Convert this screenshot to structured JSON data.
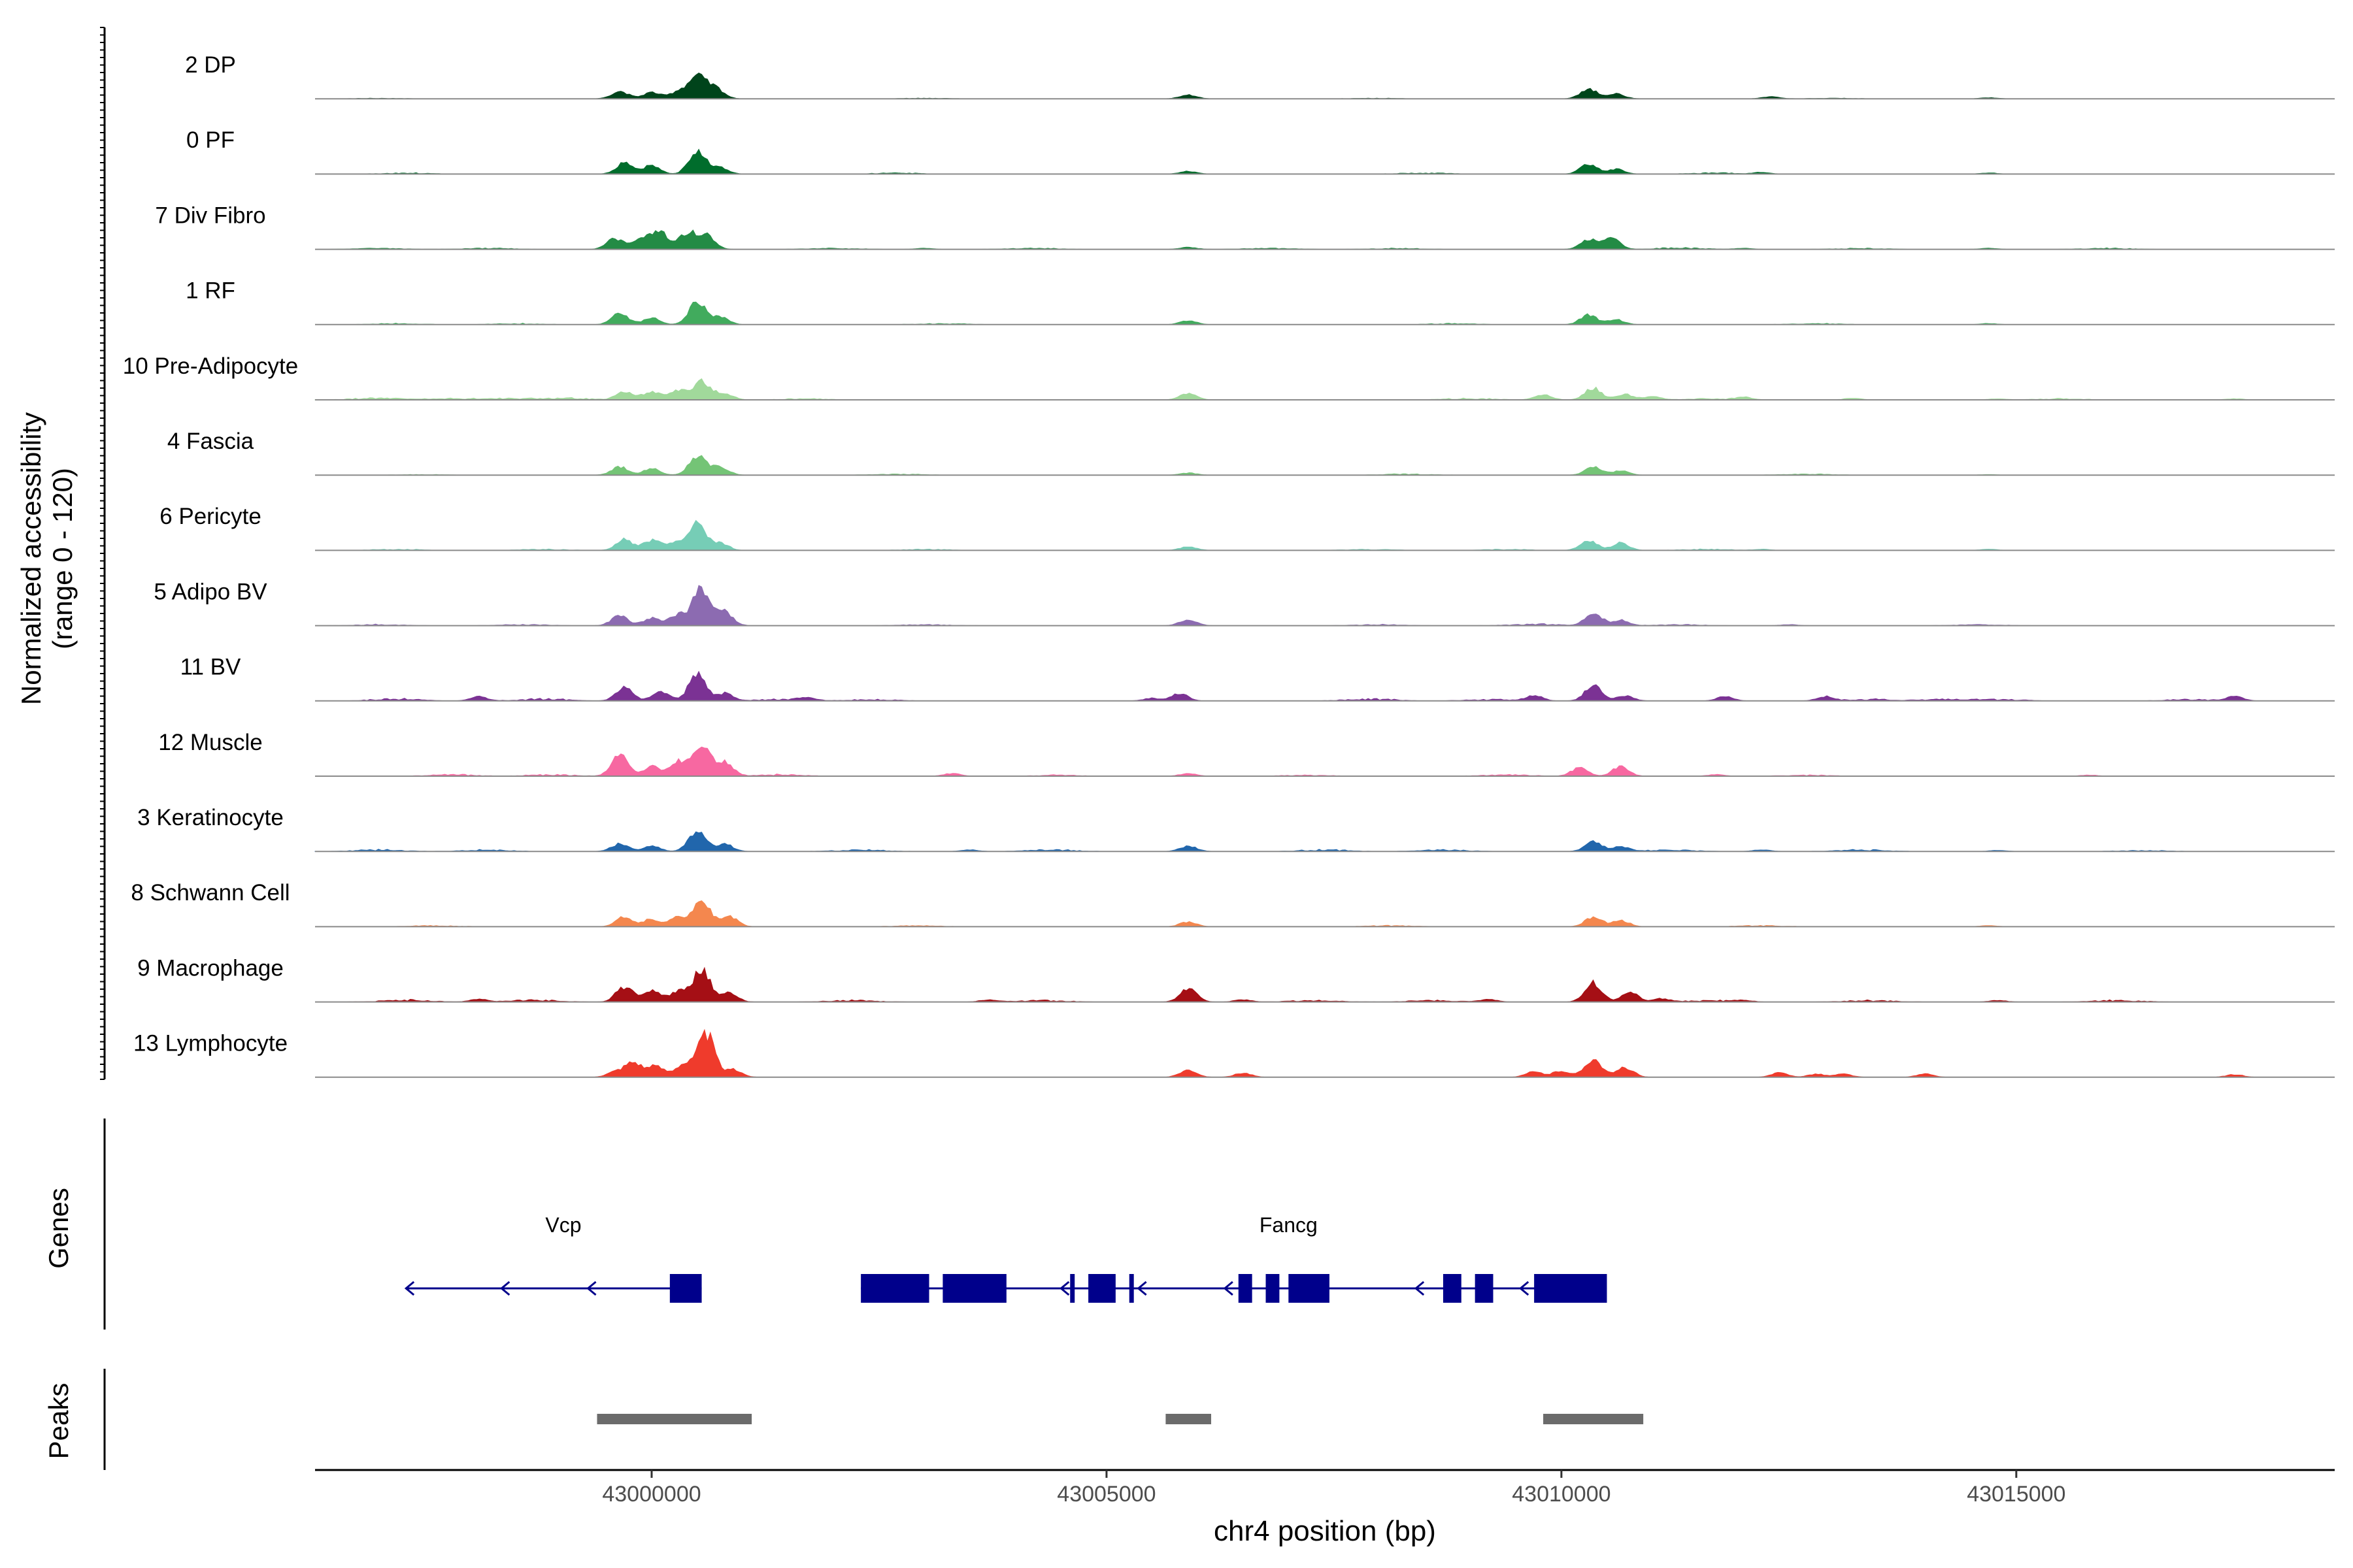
{
  "chart_data": {
    "type": "area",
    "chromosome": "chr4",
    "xlabel": "chr4 position (bp)",
    "xlim": [
      42996300,
      43018500
    ],
    "x_ticks": [
      43000000,
      43005000,
      43010000,
      43015000
    ],
    "x_tick_labels": [
      "43000000",
      "43005000",
      "43010000",
      "43015000"
    ],
    "ylabel_line1": "Normalized accessibility",
    "ylabel_line2": "(range 0 - 120)",
    "ylim": [
      0,
      120
    ],
    "tracks": [
      {
        "name": "2 DP",
        "color": "#00441B",
        "peaks": [
          [
            42999650,
            14
          ],
          [
            43000000,
            12
          ],
          [
            43000300,
            14
          ],
          [
            43000500,
            40
          ],
          [
            43000700,
            20
          ],
          [
            43005900,
            7
          ],
          [
            43010300,
            18
          ],
          [
            43010600,
            9
          ],
          [
            43012300,
            4
          ],
          [
            43014700,
            2
          ]
        ],
        "noise": [
          [
            42997000,
            1
          ],
          [
            43003000,
            1
          ],
          [
            43008000,
            1
          ],
          [
            43013000,
            1
          ]
        ]
      },
      {
        "name": "0 PF",
        "color": "#006D2C",
        "peaks": [
          [
            42999700,
            20
          ],
          [
            43000000,
            16
          ],
          [
            43000500,
            42
          ],
          [
            43000750,
            12
          ],
          [
            43005900,
            5
          ],
          [
            43010300,
            18
          ],
          [
            43010600,
            9
          ],
          [
            43012200,
            3
          ],
          [
            43014700,
            2
          ]
        ],
        "noise": [
          [
            42997300,
            2
          ],
          [
            43002700,
            2
          ],
          [
            43008500,
            2
          ],
          [
            43011700,
            2
          ]
        ]
      },
      {
        "name": "7 Div Fibro",
        "color": "#238B45",
        "peaks": [
          [
            42999600,
            20
          ],
          [
            42999900,
            22
          ],
          [
            43000100,
            30
          ],
          [
            43000400,
            30
          ],
          [
            43000600,
            25
          ],
          [
            43003000,
            2
          ],
          [
            43005900,
            4
          ],
          [
            43010300,
            18
          ],
          [
            43010550,
            20
          ],
          [
            43012000,
            2
          ],
          [
            43014700,
            2
          ]
        ],
        "noise": [
          [
            42997000,
            2
          ],
          [
            42998200,
            2
          ],
          [
            43002000,
            2
          ],
          [
            43004200,
            2
          ],
          [
            43006800,
            2
          ],
          [
            43008200,
            2
          ],
          [
            43011300,
            3
          ],
          [
            43013300,
            2
          ],
          [
            43016000,
            2
          ]
        ]
      },
      {
        "name": "1 RF",
        "color": "#41AB5D",
        "peaks": [
          [
            42999650,
            20
          ],
          [
            43000000,
            12
          ],
          [
            43000500,
            42
          ],
          [
            43000750,
            14
          ],
          [
            43005900,
            7
          ],
          [
            43010300,
            18
          ],
          [
            43010600,
            9
          ],
          [
            43014700,
            2
          ]
        ],
        "noise": [
          [
            42997200,
            2
          ],
          [
            42998500,
            2
          ],
          [
            43003200,
            2
          ],
          [
            43008800,
            2
          ],
          [
            43012800,
            2
          ]
        ]
      },
      {
        "name": "10 Pre-Adipocyte",
        "color": "#A1D99B",
        "peaks": [
          [
            42999700,
            14
          ],
          [
            43000000,
            16
          ],
          [
            43000300,
            18
          ],
          [
            43000550,
            35
          ],
          [
            43000800,
            12
          ],
          [
            43005900,
            12
          ],
          [
            43009800,
            9
          ],
          [
            43010350,
            22
          ],
          [
            43010700,
            10
          ],
          [
            43011000,
            6
          ],
          [
            43012000,
            5
          ],
          [
            43013200,
            3
          ],
          [
            43014800,
            2
          ],
          [
            43017400,
            2
          ]
        ],
        "noise": [
          [
            42997000,
            4
          ],
          [
            42997800,
            3
          ],
          [
            42998500,
            3
          ],
          [
            42999100,
            3
          ],
          [
            43001700,
            2
          ],
          [
            43009000,
            3
          ],
          [
            43011600,
            2
          ],
          [
            43015500,
            2
          ]
        ]
      },
      {
        "name": "4 Fascia",
        "color": "#74C476",
        "peaks": [
          [
            42999650,
            15
          ],
          [
            43000000,
            12
          ],
          [
            43000500,
            36
          ],
          [
            43000750,
            16
          ],
          [
            43005900,
            4
          ],
          [
            43010350,
            16
          ],
          [
            43010650,
            8
          ],
          [
            43014700,
            1
          ]
        ],
        "noise": [
          [
            42997500,
            1
          ],
          [
            43002700,
            2
          ],
          [
            43008300,
            2
          ],
          [
            43012700,
            2
          ]
        ]
      },
      {
        "name": "6 Pericyte",
        "color": "#76CDB6",
        "peaks": [
          [
            42999700,
            20
          ],
          [
            43000000,
            18
          ],
          [
            43000250,
            14
          ],
          [
            43000500,
            50
          ],
          [
            43000750,
            14
          ],
          [
            43005900,
            7
          ],
          [
            43010300,
            18
          ],
          [
            43010650,
            14
          ],
          [
            43012200,
            2
          ],
          [
            43014700,
            2
          ]
        ],
        "noise": [
          [
            42997200,
            2
          ],
          [
            42998800,
            2
          ],
          [
            43003000,
            2
          ],
          [
            43007900,
            2
          ],
          [
            43009400,
            2
          ],
          [
            43011600,
            2
          ]
        ]
      },
      {
        "name": "5 Adipo BV",
        "color": "#8C6BB1",
        "peaks": [
          [
            42999650,
            18
          ],
          [
            43000000,
            14
          ],
          [
            43000300,
            22
          ],
          [
            43000550,
            70
          ],
          [
            43000800,
            25
          ],
          [
            43005900,
            12
          ],
          [
            43010350,
            24
          ],
          [
            43010650,
            10
          ],
          [
            43012500,
            2
          ]
        ],
        "noise": [
          [
            42997000,
            2
          ],
          [
            42998600,
            2
          ],
          [
            43003000,
            2
          ],
          [
            43008000,
            2
          ],
          [
            43009700,
            3
          ],
          [
            43011300,
            2
          ],
          [
            43014600,
            2
          ]
        ]
      },
      {
        "name": "11 BV",
        "color": "#7B3294",
        "peaks": [
          [
            42998100,
            8
          ],
          [
            42999700,
            25
          ],
          [
            43000100,
            18
          ],
          [
            43000500,
            50
          ],
          [
            43000800,
            14
          ],
          [
            43001700,
            6
          ],
          [
            43005800,
            14
          ],
          [
            43005500,
            5
          ],
          [
            43009700,
            10
          ],
          [
            43010350,
            28
          ],
          [
            43010700,
            10
          ],
          [
            43011800,
            8
          ],
          [
            43012900,
            8
          ],
          [
            43017400,
            8
          ]
        ],
        "noise": [
          [
            42997200,
            4
          ],
          [
            42998800,
            4
          ],
          [
            43001400,
            3
          ],
          [
            43002400,
            3
          ],
          [
            43007900,
            4
          ],
          [
            43009200,
            3
          ],
          [
            43013400,
            3
          ],
          [
            43014200,
            3
          ],
          [
            43014800,
            3
          ],
          [
            43016900,
            3
          ]
        ]
      },
      {
        "name": "12 Muscle",
        "color": "#F768A1",
        "peaks": [
          [
            42999650,
            40
          ],
          [
            43000000,
            18
          ],
          [
            43000300,
            28
          ],
          [
            43000550,
            55
          ],
          [
            43000800,
            25
          ],
          [
            43003300,
            5
          ],
          [
            43005900,
            5
          ],
          [
            43010200,
            15
          ],
          [
            43010650,
            18
          ],
          [
            43011700,
            3
          ],
          [
            43015800,
            2
          ]
        ],
        "noise": [
          [
            42997800,
            3
          ],
          [
            42998900,
            3
          ],
          [
            43001400,
            3
          ],
          [
            43004500,
            2
          ],
          [
            43007200,
            2
          ],
          [
            43009400,
            3
          ],
          [
            43012700,
            2
          ]
        ]
      },
      {
        "name": "3 Keratinocyte",
        "color": "#2166AC",
        "peaks": [
          [
            42999650,
            14
          ],
          [
            43000000,
            10
          ],
          [
            43000500,
            40
          ],
          [
            43000800,
            14
          ],
          [
            43003500,
            3
          ],
          [
            43005900,
            10
          ],
          [
            43010350,
            18
          ],
          [
            43010650,
            9
          ],
          [
            43012200,
            3
          ],
          [
            43014800,
            2
          ]
        ],
        "noise": [
          [
            42997000,
            3
          ],
          [
            42998200,
            3
          ],
          [
            43002300,
            3
          ],
          [
            43004400,
            3
          ],
          [
            43007400,
            3
          ],
          [
            43008700,
            3
          ],
          [
            43011200,
            3
          ],
          [
            43013300,
            3
          ],
          [
            43016400,
            2
          ]
        ]
      },
      {
        "name": "8 Schwann Cell",
        "color": "#F4874E",
        "peaks": [
          [
            42999700,
            18
          ],
          [
            43000000,
            14
          ],
          [
            43000300,
            18
          ],
          [
            43000550,
            50
          ],
          [
            43000850,
            20
          ],
          [
            43005900,
            9
          ],
          [
            43010350,
            18
          ],
          [
            43010650,
            12
          ],
          [
            43014700,
            2
          ]
        ],
        "noise": [
          [
            42997600,
            2
          ],
          [
            43002900,
            2
          ],
          [
            43008100,
            2
          ],
          [
            43012200,
            2
          ]
        ]
      },
      {
        "name": "9 Macrophage",
        "color": "#A50F15",
        "peaks": [
          [
            42998100,
            5
          ],
          [
            42999700,
            28
          ],
          [
            43000000,
            22
          ],
          [
            43000300,
            20
          ],
          [
            43000550,
            60
          ],
          [
            43000850,
            16
          ],
          [
            43003700,
            4
          ],
          [
            43005900,
            25
          ],
          [
            43006500,
            4
          ],
          [
            43009200,
            5
          ],
          [
            43010350,
            35
          ],
          [
            43010750,
            18
          ],
          [
            43011100,
            6
          ],
          [
            43012000,
            3
          ],
          [
            43014800,
            3
          ]
        ],
        "noise": [
          [
            42997300,
            4
          ],
          [
            42998700,
            4
          ],
          [
            43002200,
            3
          ],
          [
            43004300,
            3
          ],
          [
            43007300,
            3
          ],
          [
            43008600,
            3
          ],
          [
            43011600,
            3
          ],
          [
            43013400,
            3
          ],
          [
            43016100,
            3
          ]
        ]
      },
      {
        "name": "13 Lymphocyte",
        "color": "#EF3B2C",
        "peaks": [
          [
            42999600,
            10
          ],
          [
            42999800,
            28
          ],
          [
            43000050,
            20
          ],
          [
            43000350,
            25
          ],
          [
            43000600,
            80
          ],
          [
            43000900,
            14
          ],
          [
            43005900,
            14
          ],
          [
            43006500,
            8
          ],
          [
            43009700,
            10
          ],
          [
            43010000,
            12
          ],
          [
            43010350,
            35
          ],
          [
            43010700,
            18
          ],
          [
            43012400,
            8
          ],
          [
            43012800,
            6
          ],
          [
            43013100,
            6
          ],
          [
            43014000,
            6
          ],
          [
            43017400,
            5
          ]
        ],
        "noise": []
      }
    ],
    "genes_title": "Genes",
    "genes": [
      {
        "name": "Vcp",
        "strand": "-",
        "start": 42997300,
        "end": 43000550,
        "exons": [
          [
            43000200,
            43000550
          ]
        ],
        "arrows": [
          42997300,
          42998350,
          42999300
        ]
      },
      {
        "name": "Fancg",
        "strand": "-",
        "start": 43002300,
        "end": 43010500,
        "exons": [
          [
            43002300,
            43003050
          ],
          [
            43003200,
            43003900
          ],
          [
            43004600,
            43004650
          ],
          [
            43004800,
            43005100
          ],
          [
            43005250,
            43005300
          ],
          [
            43006450,
            43006600
          ],
          [
            43006750,
            43006900
          ],
          [
            43007000,
            43007450
          ],
          [
            43008700,
            43008900
          ],
          [
            43009050,
            43009250
          ],
          [
            43009700,
            43010500
          ]
        ],
        "arrows": [
          43004500,
          43005350,
          43006300,
          43008400,
          43009550
        ]
      }
    ],
    "peaks_title": "Peaks",
    "peak_regions": [
      [
        42999400,
        43001100
      ],
      [
        43005650,
        43006150
      ],
      [
        43009800,
        43010900
      ]
    ]
  }
}
